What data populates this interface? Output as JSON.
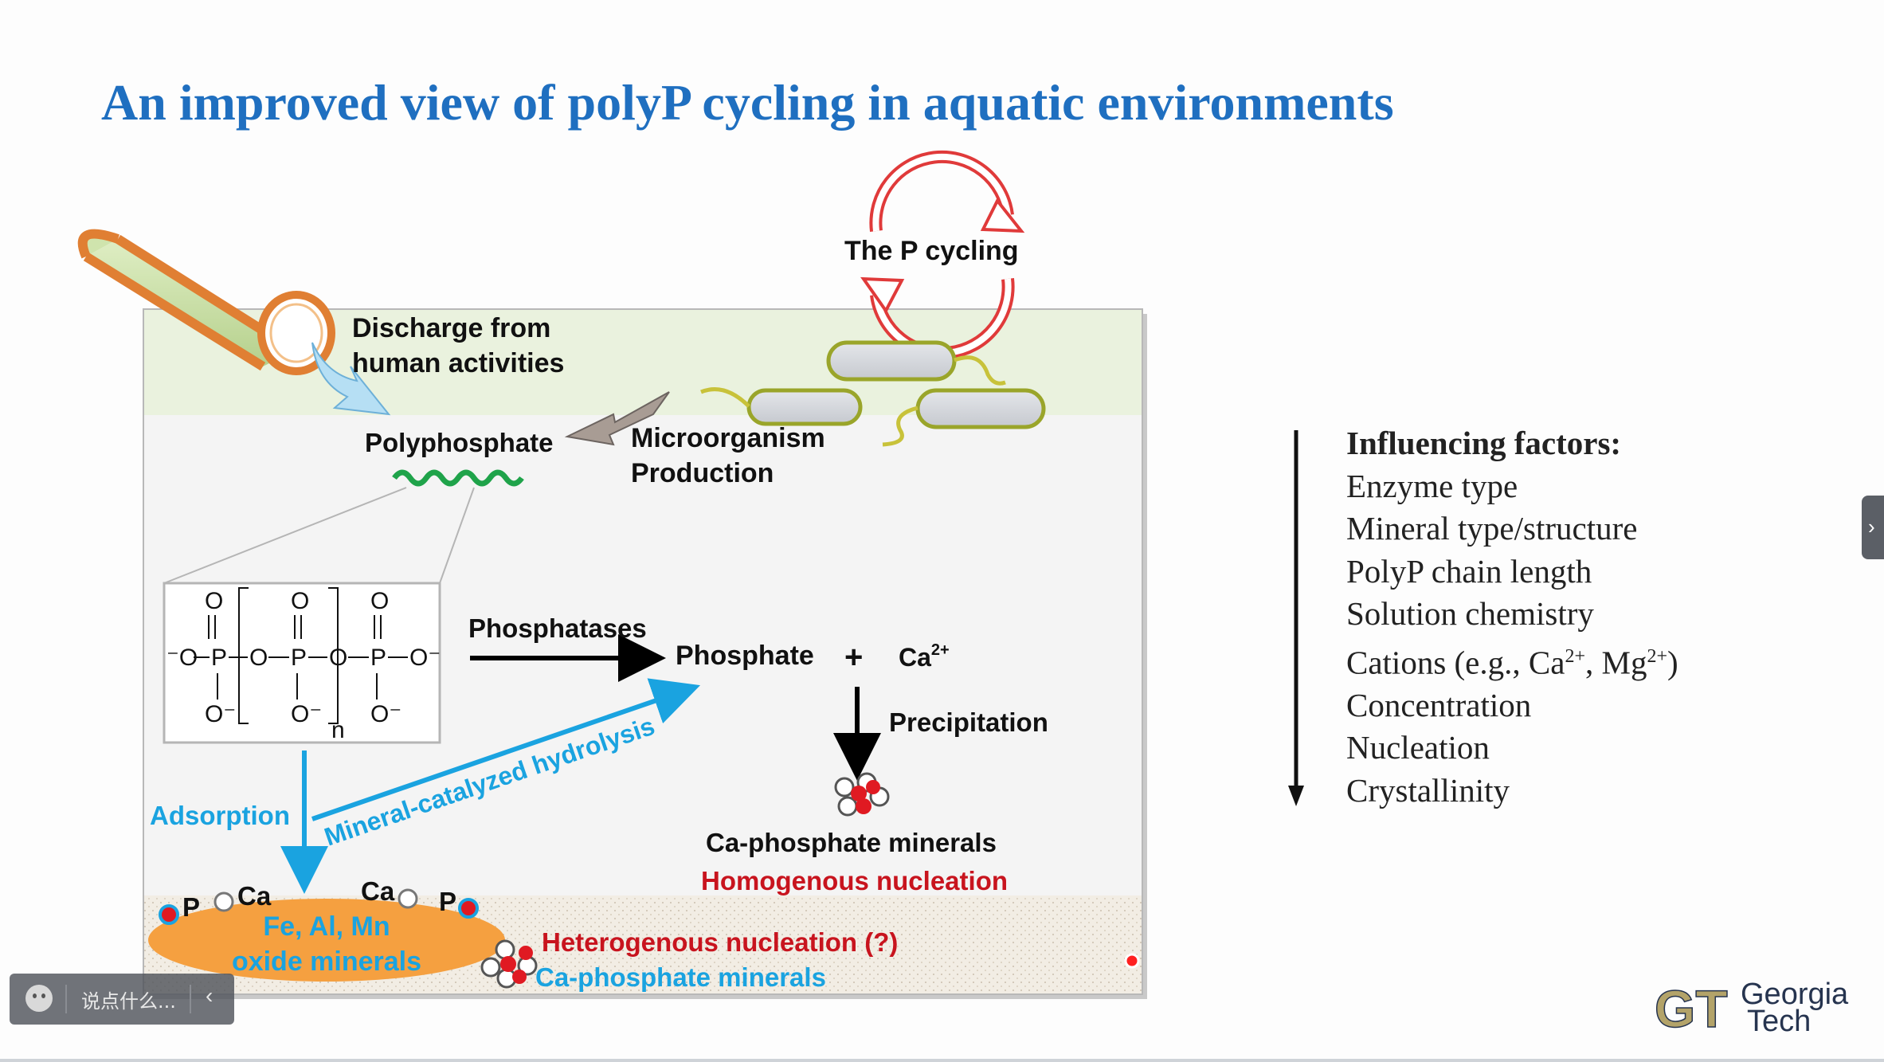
{
  "title": "An improved view of polyP cycling in aquatic environments",
  "diagram": {
    "p_cycling": "The P cycling",
    "discharge_line1": "Discharge from",
    "discharge_line2": "human activities",
    "polyphosphate": "Polyphosphate",
    "microorganism_line1": "Microorganism",
    "microorganism_line2": "Production",
    "phosphatases": "Phosphatases",
    "phosphate": "Phosphate",
    "plus": "+",
    "calcium_ion": "Ca",
    "calcium_charge": "2+",
    "precipitation": "Precipitation",
    "ca_phosphate_minerals": "Ca-phosphate minerals",
    "homogenous_nucleation": "Homogenous nucleation",
    "adsorption": "Adsorption",
    "mineral_hydrolysis": "Mineral-catalyzed hydrolysis",
    "heterogenous_nucleation": "Heterogenous nucleation (?)",
    "ca_phosphate_minerals_bottom": "Ca-phosphate minerals",
    "oxide_line1": "Fe, Al, Mn",
    "oxide_line2": "oxide minerals",
    "sorbed_p_1": "P",
    "sorbed_ca_1": "Ca",
    "sorbed_ca_2": "Ca",
    "sorbed_p_2": "P",
    "chain_subscript": "n",
    "structure_atoms": {
      "O": "O",
      "P": "P",
      "O_minus": "O⁻",
      "minus_O": "⁻O"
    }
  },
  "factors": {
    "heading": "Influencing factors:",
    "items": [
      "Enzyme type",
      "Mineral type/structure",
      "PolyP chain length",
      "Solution chemistry"
    ],
    "cations_prefix": "Cations (e.g., Ca",
    "cations_ca_charge": "2+",
    "cations_mid": ", Mg",
    "cations_mg_charge": "2+",
    "cations_suffix": ")",
    "items2": [
      "Concentration",
      "Nucleation",
      "Crystallinity"
    ]
  },
  "logo": {
    "line1": "Georgia",
    "line2": "Tech",
    "mark": "GT"
  },
  "comment_bar": {
    "placeholder": "说点什么..."
  },
  "colors": {
    "title": "#1f6fc0",
    "blue_label": "#1aa3e0",
    "red_label": "#c8141e",
    "polyP_wave": "#1fa34a",
    "oxide": "#f5a040"
  }
}
